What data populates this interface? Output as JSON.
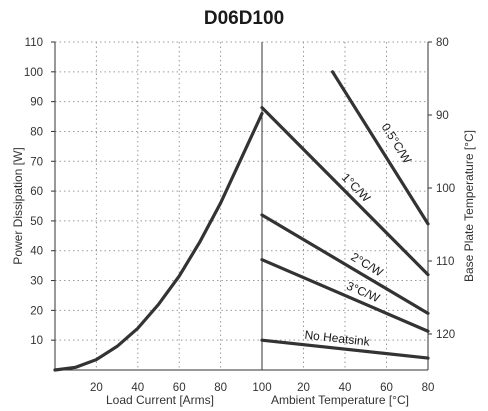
{
  "chart_data": {
    "type": "line",
    "title": "D06D100",
    "left_panel": {
      "xlabel": "Load Current [Arms]",
      "ylabel": "Power Dissipation [W]",
      "xlim": [
        0,
        100
      ],
      "ylim": [
        0,
        110
      ],
      "x_ticks": [
        "20",
        "40",
        "60",
        "80",
        "100"
      ],
      "y_ticks": [
        "10",
        "20",
        "30",
        "40",
        "50",
        "60",
        "70",
        "80",
        "90",
        "100",
        "110"
      ],
      "series": [
        {
          "x": [
            0,
            10,
            20,
            30,
            40,
            50,
            60,
            70,
            80,
            90,
            100
          ],
          "y": [
            0,
            0.9,
            3.5,
            7.9,
            14,
            22,
            31.5,
            43,
            56,
            71,
            86
          ]
        }
      ]
    },
    "right_panel": {
      "xlabel": "Ambient Temperature [°C]",
      "ylabel": "Base Plate Temperature [°C]",
      "xlim": [
        100,
        0
      ],
      "x_ticks": [
        "100",
        "20",
        "40",
        "60",
        "80"
      ],
      "y2_ticks": [
        "80",
        "90",
        "100",
        "110",
        "120"
      ],
      "series": [
        {
          "name": "0.5°C/W",
          "x": [
            34,
            80
          ],
          "y": [
            100,
            49
          ]
        },
        {
          "name": "1°C/W",
          "x": [
            0,
            80
          ],
          "y": [
            88,
            32
          ]
        },
        {
          "name": "2°C/W",
          "x": [
            0,
            80
          ],
          "y": [
            52,
            19
          ]
        },
        {
          "name": "3°C/W",
          "x": [
            0,
            80
          ],
          "y": [
            37,
            13
          ]
        },
        {
          "name": "No Heatsink",
          "x": [
            0,
            80
          ],
          "y": [
            10,
            4
          ]
        }
      ]
    }
  }
}
